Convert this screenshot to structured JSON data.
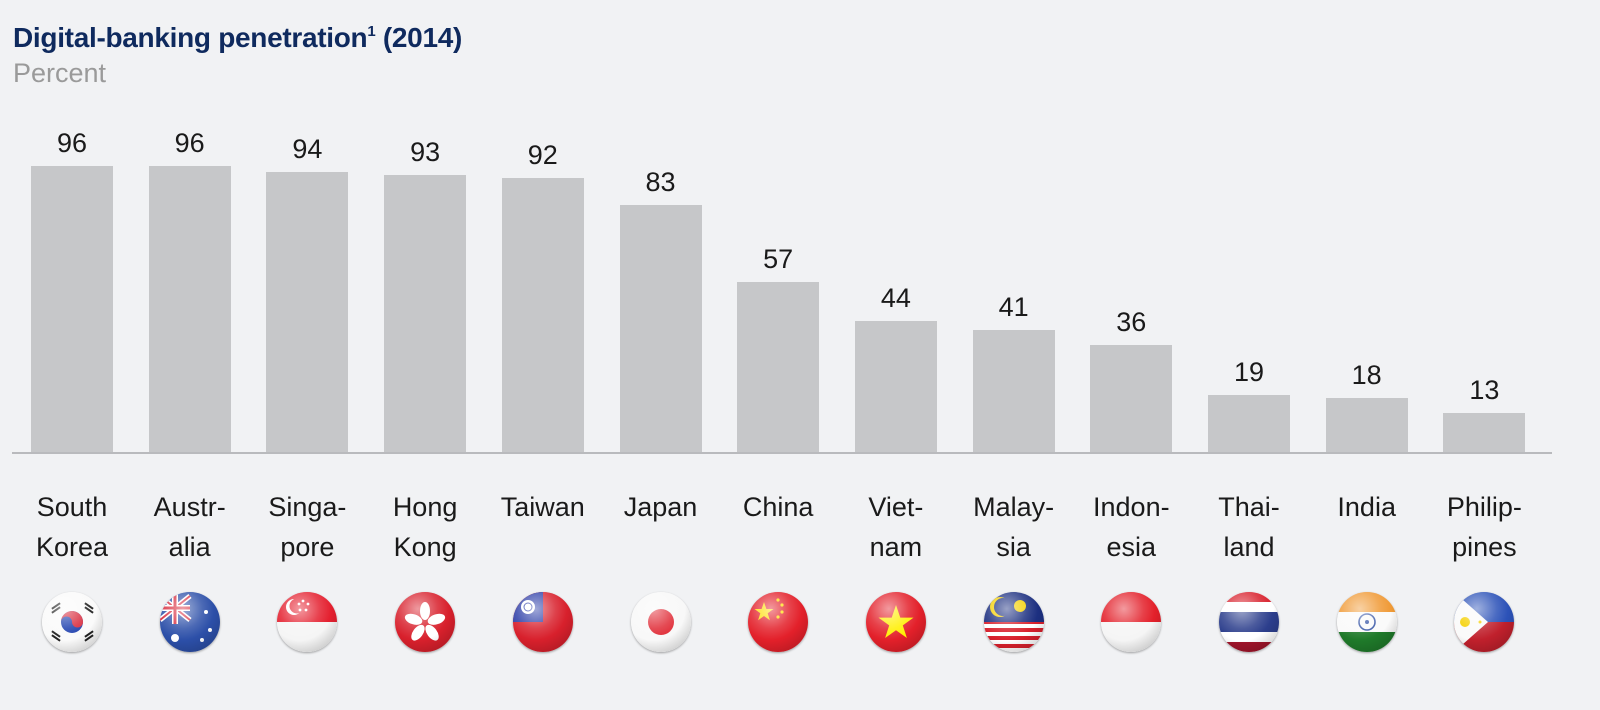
{
  "header": {
    "title": "Digital-banking penetration",
    "title_footnote": "1",
    "title_year": "(2014)",
    "subtitle": "Percent"
  },
  "colors": {
    "title": "#0f2a5e",
    "subtitle": "#9a9a9a",
    "bar": "#c6c7c9",
    "background": "#f1f2f4",
    "axis": "#b9babd"
  },
  "chart_data": {
    "type": "bar",
    "title": "Digital-banking penetration¹ (2014)",
    "subtitle": "Percent",
    "xlabel": "",
    "ylabel": "Percent",
    "ylim": [
      0,
      100
    ],
    "grid": false,
    "legend": null,
    "categories": [
      "South Korea",
      "Australia",
      "Singapore",
      "Hong Kong",
      "Taiwan",
      "Japan",
      "China",
      "Vietnam",
      "Malaysia",
      "Indonesia",
      "Thailand",
      "India",
      "Philippines"
    ],
    "values": [
      96,
      96,
      94,
      93,
      92,
      83,
      57,
      44,
      41,
      36,
      19,
      18,
      13
    ],
    "tick_labels": [
      [
        "South",
        "Korea"
      ],
      [
        "Austr-",
        "alia"
      ],
      [
        "Singa-",
        "pore"
      ],
      [
        "Hong",
        "Kong"
      ],
      [
        "Taiwan"
      ],
      [
        "Japan"
      ],
      [
        "China"
      ],
      [
        "Viet-",
        "nam"
      ],
      [
        "Malay-",
        "sia"
      ],
      [
        "Indon-",
        "esia"
      ],
      [
        "Thai-",
        "land"
      ],
      [
        "India"
      ],
      [
        "Philip-",
        "pines"
      ]
    ],
    "flag_icons": [
      "south-korea-flag-icon",
      "australia-flag-icon",
      "singapore-flag-icon",
      "hong-kong-flag-icon",
      "taiwan-flag-icon",
      "japan-flag-icon",
      "china-flag-icon",
      "vietnam-flag-icon",
      "malaysia-flag-icon",
      "indonesia-flag-icon",
      "thailand-flag-icon",
      "india-flag-icon",
      "philippines-flag-icon"
    ]
  }
}
